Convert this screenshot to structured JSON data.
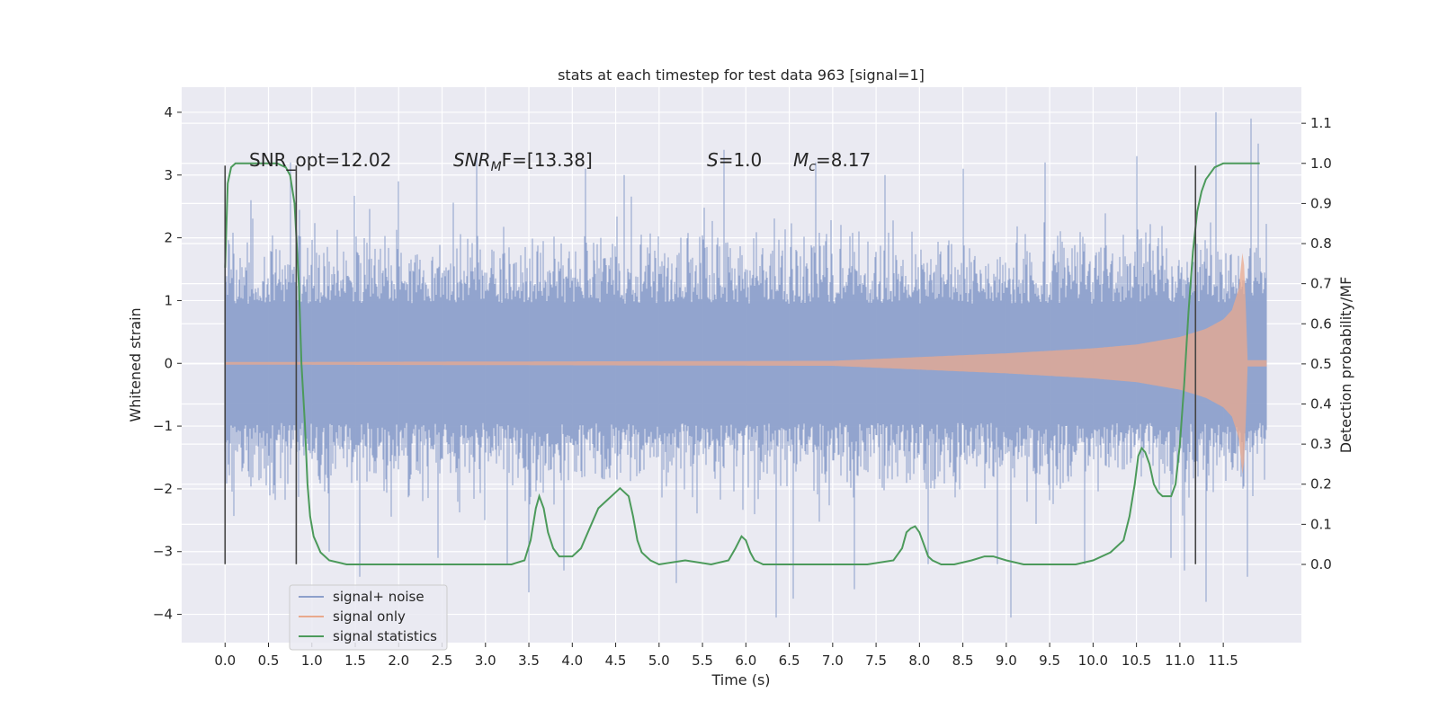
{
  "chart_data": {
    "type": "line",
    "title": "stats at each timestep for test data 963 [signal=1]",
    "xlabel": "Time (s)",
    "ylabel": "Whitened strain",
    "y2label": "Detection probability/MF",
    "xlim": [
      -0.5,
      12.4
    ],
    "ylim": [
      -4.45,
      4.4
    ],
    "y2lim": [
      -0.195,
      1.19
    ],
    "x_ticks": [
      0.0,
      0.5,
      1.0,
      1.5,
      2.0,
      2.5,
      3.0,
      3.5,
      4.0,
      4.5,
      5.0,
      5.5,
      6.0,
      6.5,
      7.0,
      7.5,
      8.0,
      8.5,
      9.0,
      9.5,
      10.0,
      10.5,
      11.0,
      11.5
    ],
    "x_tick_labels": [
      "0.0",
      "0.5",
      "1.0",
      "1.5",
      "2.0",
      "2.5",
      "3.0",
      "3.5",
      "4.0",
      "4.5",
      "5.0",
      "5.5",
      "6.0",
      "6.5",
      "7.0",
      "7.5",
      "8.0",
      "8.5",
      "9.0",
      "9.5",
      "10.0",
      "10.5",
      "11.0",
      "11.5"
    ],
    "y_ticks": [
      4,
      3,
      2,
      1,
      0,
      -1,
      -2,
      -3,
      -4
    ],
    "y_tick_labels": [
      "4",
      "3",
      "2",
      "1",
      "0",
      "−1",
      "−2",
      "−3",
      "−4"
    ],
    "y2_ticks": [
      1.1,
      1.0,
      0.9,
      0.8,
      0.7,
      0.6,
      0.5,
      0.4,
      0.3,
      0.2,
      0.1,
      0.0
    ],
    "y2_tick_labels": [
      "1.1",
      "1.0",
      "0.9",
      "0.8",
      "0.7",
      "0.6",
      "0.5",
      "0.4",
      "0.3",
      "0.2",
      "0.1",
      "0.0"
    ],
    "grid": true,
    "legend_position": "lower-left",
    "annotations": {
      "snr_opt": "SNR_opt=12.02",
      "snr_mf_name": "SNR",
      "snr_mf_sub": "M",
      "snr_mf_rest": "F=[13.38]",
      "s_name": "S",
      "s_rest": "=1.0",
      "mc_name": "M",
      "mc_sub": "c",
      "mc_rest": "=8.17"
    },
    "vertical_markers_x": [
      0.0,
      0.82,
      11.18
    ],
    "vertical_marker_range": [
      -3.2,
      3.15
    ],
    "series": [
      {
        "name": "signal+ noise",
        "color": "#8da0cb",
        "x_range": [
          0.0,
          12.0
        ],
        "typical_amplitude": 1.9,
        "peak_values": [
          [
            0.3,
            2.6
          ],
          [
            0.75,
            3.2
          ],
          [
            1.2,
            -3.0
          ],
          [
            1.55,
            -3.4
          ],
          [
            2.0,
            2.9
          ],
          [
            2.45,
            -3.1
          ],
          [
            2.9,
            3.3
          ],
          [
            3.25,
            -3.2
          ],
          [
            3.5,
            -3.65
          ],
          [
            3.9,
            -3.3
          ],
          [
            4.15,
            3.1
          ],
          [
            4.6,
            3.0
          ],
          [
            5.2,
            -3.5
          ],
          [
            5.75,
            3.4
          ],
          [
            6.35,
            -4.05
          ],
          [
            6.55,
            -3.75
          ],
          [
            6.8,
            3.2
          ],
          [
            7.25,
            -3.6
          ],
          [
            7.6,
            3.0
          ],
          [
            8.1,
            -3.2
          ],
          [
            8.5,
            3.1
          ],
          [
            8.9,
            -3.2
          ],
          [
            9.05,
            -4.05
          ],
          [
            9.45,
            3.2
          ],
          [
            9.9,
            -3.2
          ],
          [
            10.5,
            3.3
          ],
          [
            10.9,
            -3.1
          ],
          [
            11.05,
            -3.3
          ],
          [
            11.3,
            -3.8
          ],
          [
            11.42,
            4.0
          ],
          [
            11.78,
            -3.4
          ],
          [
            11.82,
            3.9
          ],
          [
            11.9,
            3.5
          ]
        ]
      },
      {
        "name": "signal only",
        "color": "#e9a98d",
        "x": [
          0.0,
          7.0,
          8.0,
          9.0,
          10.0,
          10.5,
          11.0,
          11.3,
          11.5,
          11.6,
          11.68,
          11.73,
          11.76,
          11.78,
          12.0
        ],
        "envelope": [
          0.02,
          0.04,
          0.1,
          0.16,
          0.24,
          0.3,
          0.42,
          0.55,
          0.7,
          0.85,
          1.2,
          1.9,
          0.9,
          0.05,
          0.05
        ]
      },
      {
        "name": "signal statistics",
        "color": "#4c9a5b",
        "x": [
          0.0,
          0.03,
          0.07,
          0.12,
          0.2,
          0.3,
          0.45,
          0.6,
          0.7,
          0.75,
          0.8,
          0.85,
          0.88,
          0.92,
          0.95,
          0.98,
          1.02,
          1.06,
          1.1,
          1.2,
          1.4,
          1.6,
          1.8,
          2.0,
          2.3,
          2.6,
          3.0,
          3.3,
          3.45,
          3.52,
          3.58,
          3.62,
          3.67,
          3.72,
          3.78,
          3.85,
          4.0,
          4.1,
          4.2,
          4.3,
          4.4,
          4.5,
          4.55,
          4.6,
          4.65,
          4.7,
          4.75,
          4.8,
          4.9,
          5.0,
          5.3,
          5.6,
          5.8,
          5.88,
          5.95,
          6.0,
          6.05,
          6.1,
          6.2,
          6.4,
          7.0,
          7.4,
          7.7,
          7.8,
          7.85,
          7.9,
          7.95,
          8.0,
          8.05,
          8.1,
          8.15,
          8.25,
          8.4,
          8.6,
          8.75,
          8.85,
          9.0,
          9.2,
          9.5,
          9.8,
          10.0,
          10.2,
          10.35,
          10.42,
          10.48,
          10.52,
          10.56,
          10.6,
          10.65,
          10.7,
          10.75,
          10.8,
          10.85,
          10.9,
          10.95,
          11.0,
          11.05,
          11.1,
          11.15,
          11.2,
          11.25,
          11.3,
          11.4,
          11.5,
          11.6,
          11.8,
          11.92
        ],
        "y": [
          0.74,
          0.95,
          0.99,
          1.0,
          1.0,
          1.0,
          1.0,
          1.0,
          0.99,
          0.97,
          0.9,
          0.7,
          0.5,
          0.35,
          0.2,
          0.12,
          0.07,
          0.05,
          0.03,
          0.01,
          0.0,
          0.0,
          0.0,
          0.0,
          0.0,
          0.0,
          0.0,
          0.0,
          0.01,
          0.06,
          0.14,
          0.17,
          0.14,
          0.08,
          0.04,
          0.02,
          0.02,
          0.04,
          0.09,
          0.14,
          0.16,
          0.18,
          0.19,
          0.18,
          0.17,
          0.12,
          0.06,
          0.03,
          0.01,
          0.0,
          0.01,
          0.0,
          0.01,
          0.04,
          0.07,
          0.06,
          0.03,
          0.01,
          0.0,
          0.0,
          0.0,
          0.0,
          0.01,
          0.04,
          0.08,
          0.09,
          0.095,
          0.08,
          0.05,
          0.02,
          0.01,
          0.0,
          0.0,
          0.01,
          0.02,
          0.02,
          0.01,
          0.0,
          0.0,
          0.0,
          0.01,
          0.03,
          0.06,
          0.12,
          0.2,
          0.27,
          0.29,
          0.28,
          0.25,
          0.2,
          0.18,
          0.17,
          0.17,
          0.17,
          0.2,
          0.3,
          0.45,
          0.63,
          0.78,
          0.88,
          0.93,
          0.96,
          0.99,
          1.0,
          1.0,
          1.0,
          1.0
        ]
      }
    ]
  }
}
